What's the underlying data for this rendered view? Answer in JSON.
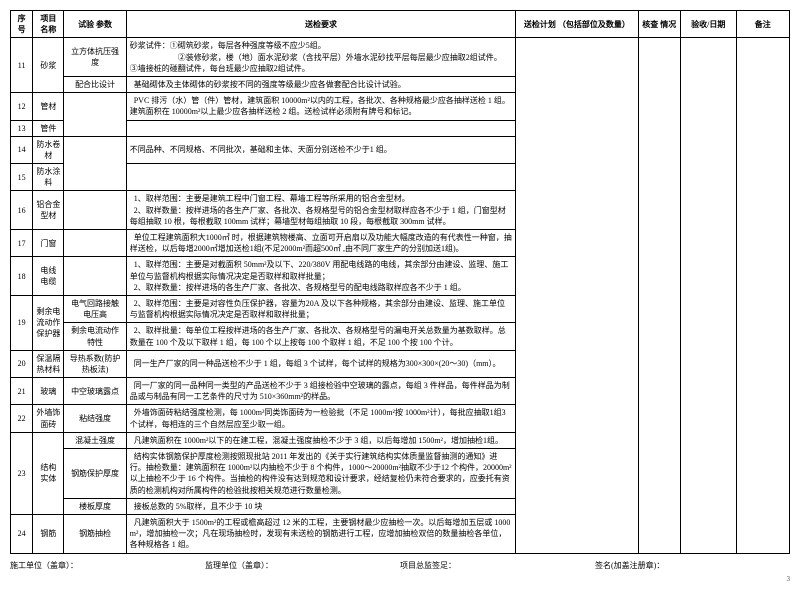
{
  "head": {
    "c0": "序号",
    "c1": "项目\n名称",
    "c2": "试验\n参数",
    "c3": "送检要求",
    "c4": "送检计划\n（包括部位及数量）",
    "c5": "核查\n情况",
    "c6": "验收/日期",
    "c7": "备注"
  },
  "rowspecs": [
    {
      "n": "11",
      "nrs": 2,
      "name": "砂浆",
      "namers": 2,
      "param": "立方体抗压强度",
      "req": "砂浆试件：①砌筑砂浆，每层各种强度等级不应少5组。\n                        ②装修砂浆，楼（地）面水泥砂浆（含找平层）外墙水泥砂找平层每层最少应抽取2组试件。\n③墙接桩的碰翻试件，每台班最少应抽取2组试件。"
    },
    {
      "param": "配合比设计",
      "req": "  基础砌体及主体砌体的砂浆按不同的强度等级最少应各做套配合比设计试验。"
    },
    {
      "n": "12",
      "name": "管材",
      "param": "",
      "prs": 2,
      "req": "  PVC 排污（水）管（件）管材，建筑面积 10000m²以内的工程，各批次、各种规格最少应各抽样送检 1 组。建筑面积在 10000m²以上最少应各抽样送检 2 组。送检试样必须附有牌号和标记。"
    },
    {
      "n": "13",
      "name": "管件"
    },
    {
      "n": "14",
      "name": "防水卷材",
      "param": "",
      "prs": 2,
      "req": "不同品种、不同规格、不同批次，基础和主体、天面分别送检不少于1 组。"
    },
    {
      "n": "15",
      "name": "防水涂料"
    },
    {
      "n": "16",
      "name": "铝合金\n型材",
      "param": "",
      "req": "  1、取样范围：主要是建筑工程中门窗工程、幕墙工程等所采用的铝合金型材。\n  2、取样数量：按样进场的各生产厂家、各批次、各规格型号的铝合金型材取样应各不少于 1 组，门窗型材每组抽取 10 根，每根截取 100mm 试样；幕墙型材每组抽取 10 段，每根截取 300mm 试样。"
    },
    {
      "n": "17",
      "name": "门窗",
      "param": "",
      "req": "  单位工程建筑面积大1000㎡ 时，根据建筑物楼高、立面可开启扇以及功能大幅度改造的有代表性一种窗，抽样送检，以后每增2000㎡增加送检1组(不足2000m²而超500㎡ ,由不同厂家生产的分别加送1组)。"
    },
    {
      "n": "18",
      "name": "电线\n电缆",
      "param": "",
      "req": "  1、取样范围：主要是对截面积 50mm²及以下、220/380V 用配电线路的电线，其余部分由建设、监理、施工单位与监督机构根据实际情况决定是否取样和取样批量；\n  2、取样数量：按样进场的各生产厂家、各批次、各规格型号的配电线路取样应各不少于 1 组。"
    },
    {
      "n": "19",
      "nrs": 2,
      "name": "剩余电流动作保护器",
      "namers": 2,
      "param": "电气回路接触电压高",
      "req": "  2、取样范围：主要是对容性负压保护器，容量为20A 及以下各种规格，其余部分由建设、监理、施工单位与监督机构根据实际情况决定是否取样和取样批量；"
    },
    {
      "param": "剩余电流动作特性",
      "req": "  2、取样批量：每单位工程按样进场的各生产厂家、各批次、各规格型号的漏电开关总数量为基数取样。总数量在 100 个及以下取样 1 组，每 100 个以上按每 100 个取样 1 组，不足 100 个按 100 个计。"
    },
    {
      "n": "20",
      "name": "保温隔热材料",
      "param": "导热系数(防护热板法)",
      "req": "  同一生产厂家的同一种品送检不少于 1 组，每组 3 个试样，每个试样的规格为300×300×(20～30)（mm）。"
    },
    {
      "n": "21",
      "name": "玻璃",
      "param": "中空玻璃露点",
      "req": "  同一厂家的同一品种同一类型的产品送检不少于 3 组接检验中空玻璃的露点，每组 3 件样品，每件样品为制品或与制品有同一工艺条件的尺寸为 510×360mm²的样品。"
    },
    {
      "n": "22",
      "name": "外墙饰面砖",
      "param": "粘结强度",
      "req": "  外墙饰面砖粘结强度检测，每 1000m²同类饰面砖为一检验批（不足 1000m²按 1000m²计），每批应抽取1组3个试样，每相连的三个自然层应至少取一组。"
    },
    {
      "n": "23",
      "nrs": 3,
      "name": "结构\n实体",
      "namers": 3,
      "param": "混凝土强度",
      "req": "  凡建筑面积在 1000m²以下的在建工程，混凝土强度抽检不少于 3 组，以后每增加 1500m²，增加抽检1组。"
    },
    {
      "param": "钢筋保护厚度",
      "req": "  结构实体钢筋保护厚度检测按照现批站 2011 年发出的《关于实行建筑结构实体质量监督抽测的通知》进行。抽检数量：建筑面积在 1000m²以内抽检不少于 8 个构件，1000～20000m²抽取不少于12 个构件，20000m²以上抽检不少于 16 个构件。当抽检的构件没有达到规范和设计要求，经结复检仍未符合要求的，应委托有资质的检测机构对所属构件的检验批按相关规范进行数量检测。"
    },
    {
      "param": "楼板厚度",
      "req": "  接板总数的 5%取样，且不少于 10 块"
    },
    {
      "n": "24",
      "name": "钢筋",
      "param": "钢筋抽检",
      "req": "  凡建筑面积大于 1500m²的工程或檐高超过 12 米的工程，主要钢材最少应抽检一次。以后每增加五层或 1000m²，增加抽检一次；凡在现场抽检时，发现有未送检的钢筋进行工程，应增加抽检双倍的数量抽检各单位，各种规格各 1 组。"
    }
  ],
  "footer": {
    "a": "施工单位（盖章）：",
    "b": "监理单位（盖章）：",
    "c": "项目总监签足：",
    "d": "签名(加盖注册章)："
  }
}
